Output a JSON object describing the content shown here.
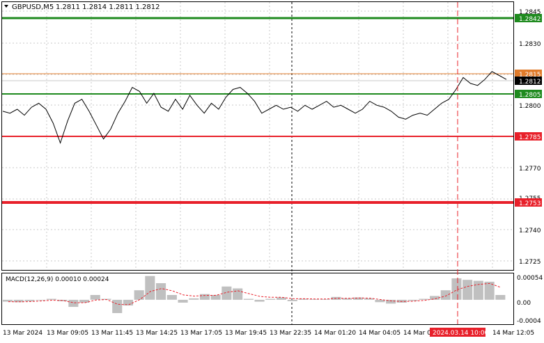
{
  "header": {
    "symbol": "GBPUSD,M5",
    "ohlc": "1.2811 1.2814 1.2811 1.2812"
  },
  "price_axis_labels": [
    "1.2845",
    "1.2830",
    "1.2800",
    "1.2770",
    "1.2755",
    "1.2740",
    "1.2725"
  ],
  "levels": [
    {
      "value": "1.2842",
      "color": "#1e8a1e",
      "kind": "support-resistance-green"
    },
    {
      "value": "1.2815",
      "color": "#e07b2a",
      "kind": "current-bid-orange"
    },
    {
      "value": "1.2812",
      "color": "#000000",
      "kind": "current-price"
    },
    {
      "value": "1.2805",
      "color": "#1e8a1e",
      "kind": "support-resistance-green"
    },
    {
      "value": "1.2785",
      "color": "#e8202a",
      "kind": "support-resistance-red"
    },
    {
      "value": "1.2753",
      "color": "#e8202a",
      "kind": "support-resistance-red"
    }
  ],
  "macd": {
    "label": "MACD(12,26,9) 0.00010 0.00024",
    "axis_labels": [
      "0.00054",
      "0.00",
      "-0.0004"
    ]
  },
  "time_axis_labels": [
    "13 Mar 2024",
    "13 Mar 09:05",
    "13 Mar 11:45",
    "13 Mar 14:25",
    "13 Mar 17:05",
    "13 Mar 19:45",
    "13 Mar 22:35",
    "14 Mar 01:20",
    "14 Mar 04:05",
    "14 Mar 0",
    "14 Mar 12:05"
  ],
  "time_cursor_label": "2024.03.14 10:00",
  "colors": {
    "price_line": "#000000",
    "grid": "#c8c8c8",
    "histogram": "#c0c0c0",
    "signal": "#e8202a",
    "cursor": "#e8202a",
    "cursor_label_bg": "#e8202a"
  },
  "chart_data": {
    "type": "line",
    "series": [
      {
        "values": [
          1.2796,
          1.2795,
          1.2797,
          1.2794,
          1.2798,
          1.28,
          1.2797,
          1.279,
          1.278,
          1.2791,
          1.28,
          1.2802,
          1.2796,
          1.2789,
          1.2782,
          1.2787,
          1.2795,
          1.2801,
          1.2808,
          1.2806,
          1.28,
          1.2805,
          1.2798,
          1.2796,
          1.2802,
          1.2797,
          1.2804,
          1.2799,
          1.2795,
          1.28,
          1.2797,
          1.2803,
          1.2807,
          1.2808,
          1.2805,
          1.2801,
          1.2795,
          1.2797,
          1.2799,
          1.2797,
          1.2798,
          1.2796,
          1.2799,
          1.2797,
          1.2799,
          1.2801,
          1.2798,
          1.2799,
          1.2797,
          1.2795,
          1.2797,
          1.2801,
          1.2799,
          1.2798,
          1.2796,
          1.2793,
          1.2792,
          1.2794,
          1.2795,
          1.2794,
          1.2797,
          1.28,
          1.2802,
          1.2807,
          1.2813,
          1.281,
          1.2809,
          1.2812,
          1.2816,
          1.2814,
          1.2812
        ]
      }
    ],
    "macd_histogram": [
      -4e-05,
      -5e-05,
      -3e-05,
      0.0,
      2e-05,
      -3e-05,
      -0.00015,
      -6e-05,
      0.0001,
      2e-05,
      -0.00028,
      -0.00012,
      0.0002,
      0.0005,
      0.00035,
      0.0001,
      -6e-05,
      3e-05,
      0.00012,
      0.0001,
      0.00028,
      0.00024,
      2e-05,
      -4e-05,
      2e-05,
      5e-05,
      -3e-05,
      2e-05,
      1e-05,
      1e-05,
      6e-05,
      3e-05,
      5e-05,
      3e-05,
      -5e-05,
      -8e-05,
      -6e-05,
      -2e-05,
      2e-05,
      8e-05,
      0.0002,
      0.00045,
      0.00042,
      0.0004,
      0.00038,
      0.0001
    ],
    "macd_ylim": [
      -0.0005,
      0.00054
    ],
    "ylim": [
      1.2716,
      1.2851
    ]
  }
}
